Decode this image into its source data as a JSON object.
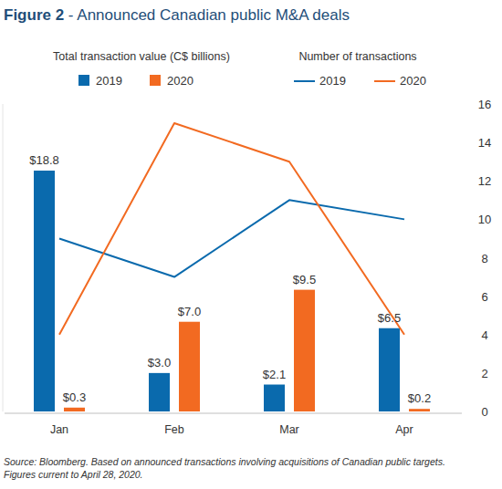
{
  "chart_data": {
    "type": "bar",
    "title": "Figure 2 - Announced Canadian public M&A deals",
    "ylabel": "Total transaction value (C$ billions)",
    "y2label": "Number of transactions",
    "categories": [
      "Jan",
      "Feb",
      "Mar",
      "Apr"
    ],
    "series": [
      {
        "name": "2019",
        "type": "bar",
        "color": "#0a6aad",
        "values": [
          18.8,
          3.0,
          2.1,
          6.5
        ],
        "value_labels": [
          "$18.8",
          "$3.0",
          "$2.1",
          "$6.5"
        ]
      },
      {
        "name": "2020",
        "type": "bar",
        "color": "#f26a21",
        "values": [
          0.3,
          7.0,
          9.5,
          0.2
        ],
        "value_labels": [
          "$0.3",
          "$7.0",
          "$9.5",
          "$0.2"
        ]
      },
      {
        "name": "2019",
        "type": "line",
        "axis": "y2",
        "color": "#0a6aad",
        "values": [
          9,
          7,
          11,
          10
        ]
      },
      {
        "name": "2020",
        "type": "line",
        "axis": "y2",
        "color": "#f26a21",
        "values": [
          4,
          15,
          13,
          4
        ]
      }
    ],
    "ylim": [
      0,
      24
    ],
    "yticks": [],
    "y2lim": [
      0,
      16
    ],
    "y2ticks": [
      0,
      2,
      4,
      6,
      8,
      10,
      12,
      14,
      16
    ],
    "data_labels": true,
    "grid": false,
    "legend": "top",
    "notes": [
      "Source: Bloomberg. Based on announced transactions involving acquisitions of Canadian public targets.",
      "Figures current to April 28, 2020."
    ]
  }
}
